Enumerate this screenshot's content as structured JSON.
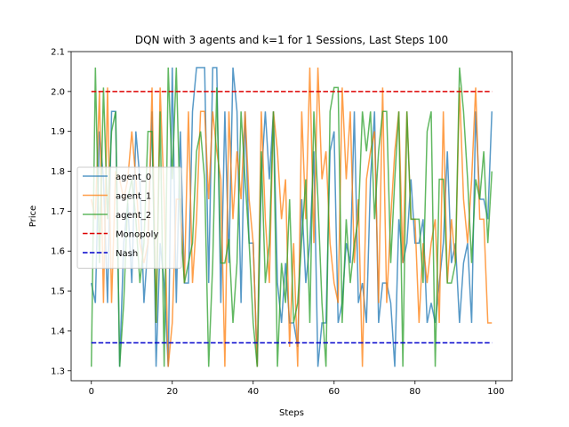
{
  "chart_data": {
    "type": "line",
    "title": "DQN with 3 agents and k=1 for 1 Sessions, Last Steps 100",
    "xlabel": "Steps",
    "ylabel": "Price",
    "xlim": [
      -5,
      104
    ],
    "ylim": [
      1.275,
      2.1
    ],
    "xticks": [
      0,
      20,
      40,
      60,
      80,
      100
    ],
    "yticks": [
      1.3,
      1.4,
      1.5,
      1.6,
      1.7,
      1.8,
      1.9,
      2.0,
      2.1
    ],
    "legend": "center-left",
    "series": [
      {
        "name": "agent_0",
        "color": "#1f77b4",
        "values": [
          1.52,
          1.47,
          1.9,
          1.78,
          1.47,
          1.95,
          1.95,
          1.31,
          1.62,
          1.72,
          1.52,
          1.9,
          1.78,
          1.47,
          1.62,
          1.95,
          1.31,
          1.62,
          1.52,
          1.31,
          2.06,
          1.47,
          1.9,
          1.52,
          1.52,
          1.95,
          2.06,
          2.06,
          2.06,
          1.52,
          2.06,
          2.06,
          1.47,
          1.95,
          1.57,
          2.06,
          1.95,
          1.47,
          1.95,
          1.62,
          1.62,
          1.31,
          1.78,
          1.95,
          1.78,
          1.95,
          1.52,
          1.42,
          1.57,
          1.42,
          1.42,
          1.36,
          1.73,
          1.52,
          1.62,
          1.85,
          1.31,
          1.42,
          1.42,
          1.85,
          1.9,
          1.42,
          1.47,
          1.62,
          1.57,
          1.95,
          1.47,
          1.52,
          1.42,
          1.78,
          1.95,
          1.42,
          1.52,
          1.52,
          1.47,
          1.31,
          1.68,
          1.57,
          1.62,
          1.78,
          1.62,
          1.62,
          1.68,
          1.42,
          1.47,
          1.42,
          1.52,
          1.62,
          1.85,
          1.57,
          1.62,
          1.42,
          1.57,
          1.62,
          1.42,
          1.95,
          1.73,
          1.73,
          1.68,
          1.95
        ],
        "opacity": 0.75
      },
      {
        "name": "agent_1",
        "color": "#ff7f0e",
        "values": [
          1.73,
          1.68,
          2.0,
          1.47,
          2.01,
          1.47,
          1.8,
          1.78,
          1.73,
          1.78,
          1.9,
          1.78,
          1.62,
          1.57,
          1.62,
          2.01,
          1.42,
          2.01,
          1.73,
          1.31,
          1.42,
          1.73,
          1.73,
          1.52,
          1.95,
          1.52,
          1.68,
          1.95,
          1.95,
          1.73,
          1.95,
          1.85,
          1.78,
          1.31,
          1.95,
          1.68,
          1.85,
          1.73,
          1.95,
          1.73,
          1.62,
          1.31,
          1.95,
          1.68,
          1.52,
          1.95,
          1.85,
          1.68,
          1.78,
          1.36,
          1.62,
          1.31,
          1.95,
          1.68,
          2.06,
          1.62,
          2.06,
          1.78,
          1.85,
          1.62,
          1.52,
          1.47,
          2.01,
          1.78,
          1.95,
          1.57,
          1.73,
          1.31,
          1.78,
          1.85,
          1.9,
          1.47,
          2.01,
          1.47,
          1.68,
          1.85,
          1.95,
          1.57,
          1.95,
          1.68,
          1.68,
          1.42,
          1.62,
          1.52,
          1.62,
          1.68,
          1.42,
          1.95,
          1.52,
          1.68,
          1.57,
          2.01,
          1.73,
          1.62,
          1.78,
          2.01,
          1.68,
          1.68,
          1.42,
          1.42
        ],
        "opacity": 0.75
      },
      {
        "name": "agent_2",
        "color": "#2ca02c",
        "values": [
          1.31,
          2.06,
          1.57,
          2.01,
          1.68,
          1.9,
          1.95,
          1.31,
          1.47,
          1.73,
          1.78,
          1.68,
          1.52,
          1.62,
          1.9,
          1.9,
          1.42,
          1.95,
          1.31,
          2.06,
          1.78,
          2.06,
          1.68,
          1.52,
          1.57,
          1.62,
          1.85,
          1.9,
          1.78,
          1.31,
          1.57,
          2.01,
          1.57,
          1.57,
          1.63,
          1.42,
          1.57,
          1.95,
          1.78,
          1.62,
          1.42,
          1.31,
          1.85,
          1.52,
          1.62,
          1.95,
          1.31,
          1.57,
          1.47,
          1.73,
          1.42,
          1.47,
          1.63,
          1.78,
          1.42,
          1.95,
          1.73,
          1.47,
          1.31,
          1.95,
          2.01,
          2.01,
          1.42,
          1.68,
          1.52,
          1.62,
          1.68,
          1.95,
          1.85,
          1.95,
          1.68,
          1.85,
          1.95,
          1.95,
          1.57,
          1.78,
          1.95,
          1.31,
          1.95,
          1.68,
          1.68,
          1.68,
          1.52,
          1.9,
          1.95,
          1.31,
          1.78,
          1.78,
          1.52,
          1.52,
          1.57,
          2.06,
          1.95,
          1.78,
          1.57,
          1.78,
          1.73,
          1.85,
          1.62,
          1.8
        ],
        "opacity": 0.75
      },
      {
        "name": "Monopoly",
        "color": "#dd0000",
        "dashed": true,
        "constant": 2.0,
        "x_range": [
          0,
          99
        ]
      },
      {
        "name": "Nash",
        "color": "#0000cc",
        "dashed": true,
        "constant": 1.37,
        "x_range": [
          0,
          99
        ]
      }
    ]
  }
}
